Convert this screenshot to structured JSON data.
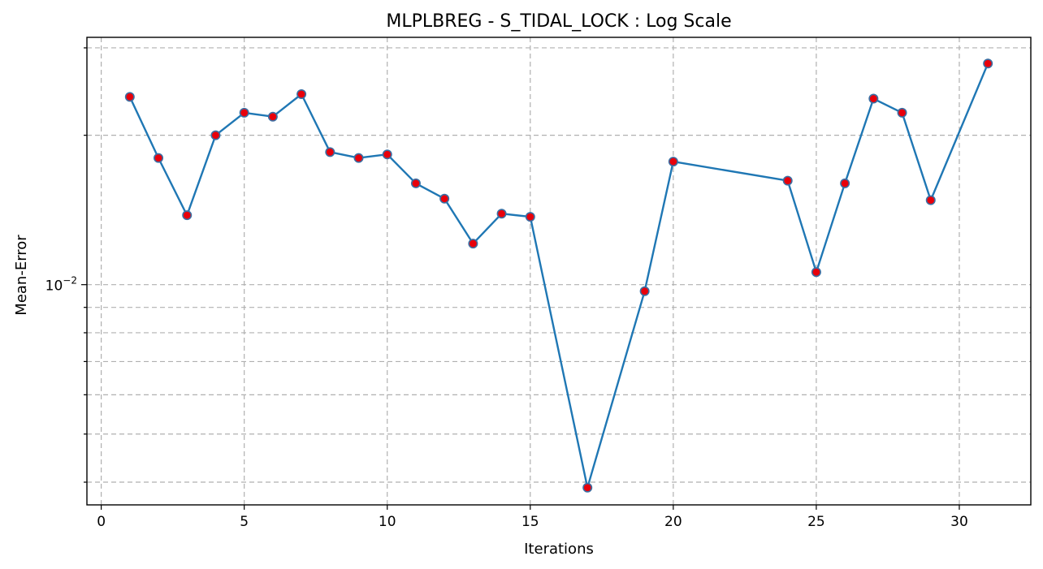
{
  "chart_data": {
    "type": "line",
    "title": "MLPLBREG - S_TIDAL_LOCK : Log Scale",
    "xlabel": "Iterations",
    "ylabel": "Mean-Error",
    "yscale": "log",
    "xlim": [
      -0.5,
      32.5
    ],
    "ylim": [
      0.0036,
      0.0315
    ],
    "grid": true,
    "x_ticks": [
      0,
      5,
      10,
      15,
      20,
      25,
      30
    ],
    "y_major_tick": {
      "value": 0.01,
      "label_base": "10",
      "label_exp": "−2"
    },
    "y_minor_ticks": [
      0.004,
      0.005,
      0.006,
      0.007,
      0.008,
      0.009,
      0.02,
      0.03
    ],
    "series": [
      {
        "x": [
          1,
          2,
          3,
          4,
          5,
          6,
          7,
          8,
          9,
          10,
          11,
          12,
          13,
          14,
          15,
          17,
          19,
          20,
          24,
          25,
          26,
          27,
          28,
          29,
          31
        ],
        "values": [
          0.0239,
          0.018,
          0.0138,
          0.02,
          0.0222,
          0.0218,
          0.0242,
          0.0185,
          0.018,
          0.0183,
          0.016,
          0.0149,
          0.0121,
          0.0139,
          0.0137,
          0.0039,
          0.0097,
          0.0177,
          0.0162,
          0.0106,
          0.016,
          0.0237,
          0.0222,
          0.0148,
          0.0279
        ]
      }
    ],
    "colors": {
      "line": "#1f77b4",
      "marker_fill": "#e8000b",
      "marker_edge": "#3b6fa3",
      "grid": "#b0b0b0"
    }
  }
}
